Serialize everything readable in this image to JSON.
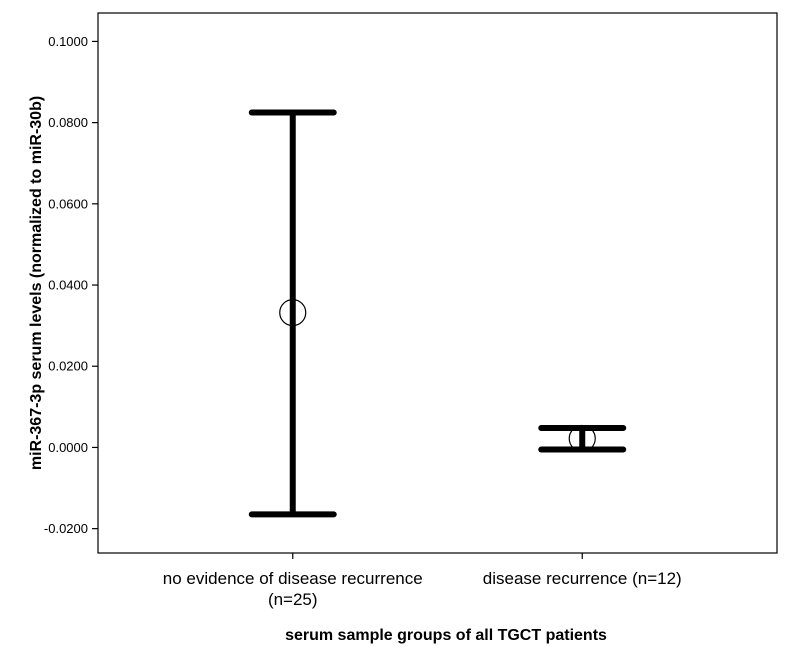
{
  "chart_data": {
    "type": "errorbar",
    "xlabel": "serum sample groups of all TGCT patients",
    "ylabel": "miR-367-3p serum levels (normalized to miR-30b)",
    "ylim": [
      -0.026,
      0.107
    ],
    "yticks": [
      -0.02,
      0.0,
      0.02,
      0.04,
      0.06,
      0.08,
      0.1
    ],
    "ytick_labels": [
      "-0.0200",
      "0.0000",
      "0.0200",
      "0.0400",
      "0.0600",
      "0.0800",
      "0.1000"
    ],
    "grid": false,
    "categories": [
      {
        "lines": [
          "no evidence of disease recurrence",
          "(n=25)"
        ]
      },
      {
        "lines": [
          "disease recurrence (n=12)"
        ]
      }
    ],
    "series": [
      {
        "points": [
          {
            "mean": 0.0332,
            "lower": -0.0165,
            "upper": 0.0825
          },
          {
            "mean": 0.0022,
            "lower": -0.0005,
            "upper": 0.0048
          }
        ]
      }
    ],
    "colors": {
      "bar": "#000000",
      "marker_stroke": "#000000",
      "background": "#ffffff"
    }
  }
}
